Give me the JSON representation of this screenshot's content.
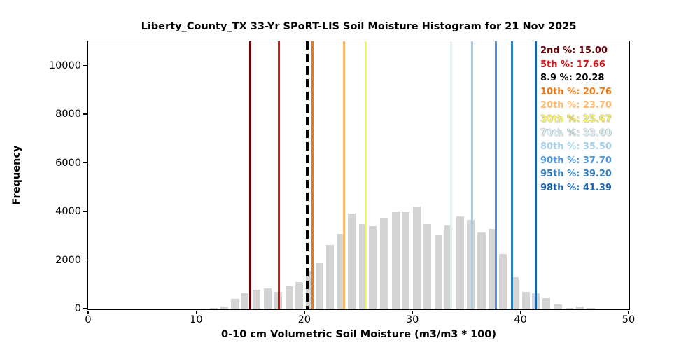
{
  "chart_data": {
    "type": "bar",
    "title": "Liberty_County_TX 33-Yr SPoRT-LIS Soil Moisture Histogram for 21 Nov 2025",
    "xlabel": "0-10 cm Volumetric Soil Moisture (m3/m3 * 100)",
    "ylabel": "Frequency",
    "xlim": [
      0,
      50
    ],
    "ylim": [
      0,
      11000
    ],
    "x_ticks": [
      0,
      10,
      20,
      30,
      40,
      50
    ],
    "y_ticks": [
      0,
      2000,
      4000,
      6000,
      8000,
      10000
    ],
    "grid": false,
    "legend_position": "upper-right",
    "bar_color": "#d4d4d4",
    "histogram": {
      "bar_width_units": 0.72,
      "bin_centers": [
        10.6,
        11.6,
        12.6,
        13.6,
        14.5,
        15.6,
        16.6,
        17.6,
        18.6,
        19.5,
        20.5,
        21.4,
        22.4,
        23.4,
        24.4,
        25.4,
        26.3,
        27.4,
        28.5,
        29.4,
        30.4,
        31.4,
        32.4,
        33.3,
        34.4,
        35.4,
        36.4,
        37.4,
        38.4,
        39.5,
        40.5,
        41.4,
        42.4,
        43.5,
        44.5,
        45.5,
        46.5
      ],
      "frequencies": [
        25,
        50,
        115,
        440,
        660,
        820,
        870,
        710,
        960,
        1110,
        1580,
        1910,
        2660,
        3110,
        3940,
        3500,
        3420,
        3750,
        4010,
        3990,
        4230,
        3510,
        3060,
        3470,
        3820,
        3700,
        3160,
        3320,
        2280,
        1320,
        720,
        650,
        470,
        210,
        70,
        130,
        60
      ]
    },
    "percentile_lines": [
      {
        "label": "2nd %",
        "value": "15.00",
        "x": 15.0,
        "color": "#640008",
        "style": "solid"
      },
      {
        "label": "5th %",
        "value": "17.66",
        "x": 17.66,
        "color": "#d61317",
        "style": "solid"
      },
      {
        "label": "8.9 %",
        "value": "20.28",
        "x": 20.28,
        "color": "#000000",
        "style": "dashed"
      },
      {
        "label": "10th %",
        "value": "20.76",
        "x": 20.76,
        "color": "#ec7814",
        "style": "solid"
      },
      {
        "label": "20th %",
        "value": "23.70",
        "x": 23.7,
        "color": "#fdb96d",
        "style": "solid"
      },
      {
        "label": "30th %",
        "value": "25.67",
        "x": 25.67,
        "color": "#f8f55f",
        "style": "solid"
      },
      {
        "label": "70th %",
        "value": "33.60",
        "x": 33.6,
        "color": "#dcf1f7",
        "style": "solid"
      },
      {
        "label": "80th %",
        "value": "35.50",
        "x": 35.5,
        "color": "#a4cfea",
        "style": "solid"
      },
      {
        "label": "90th %",
        "value": "37.70",
        "x": 37.7,
        "color": "#4d96dc",
        "style": "solid"
      },
      {
        "label": "95th %",
        "value": "39.20",
        "x": 39.2,
        "color": "#2e7dc1",
        "style": "solid"
      },
      {
        "label": "98th %",
        "value": "41.39",
        "x": 41.39,
        "color": "#1a62ad",
        "style": "solid"
      }
    ]
  }
}
